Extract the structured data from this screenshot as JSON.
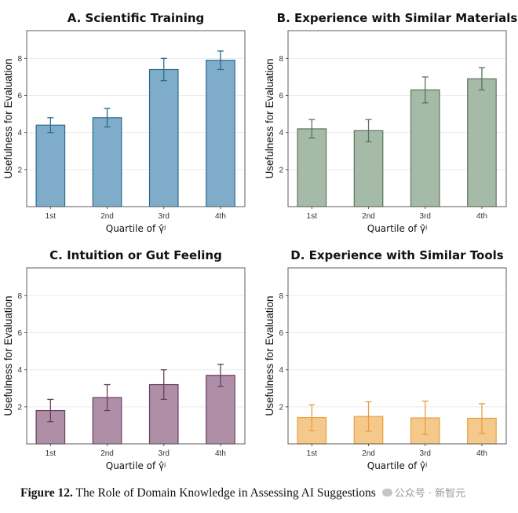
{
  "figure": {
    "caption_label": "Figure 12.",
    "caption_text": " The Role of Domain Knowledge in Assessing AI Suggestions",
    "watermark": "公众号 · 新智元",
    "watermark_icon": "wechat-icon"
  },
  "chart_data": [
    {
      "type": "bar",
      "title": "A. Scientific Training",
      "xlabel": "Quartile of γ̂ʲ",
      "ylabel": "Usefulness for Evaluation",
      "categories": [
        "1st",
        "2nd",
        "3rd",
        "4th"
      ],
      "values": [
        4.4,
        4.8,
        7.4,
        7.9
      ],
      "error_low": [
        4.0,
        4.3,
        6.8,
        7.4
      ],
      "error_high": [
        4.8,
        5.3,
        8.0,
        8.4
      ],
      "yticks": [
        2,
        4,
        6,
        8
      ],
      "ylim": [
        0,
        9.5
      ],
      "grid": true,
      "fill_color": "#7fadc9",
      "edge_color": "#2b6a8c",
      "error_color": "#2b6a8c"
    },
    {
      "type": "bar",
      "title": "B. Experience with Similar Materials",
      "xlabel": "Quartile of γ̂ʲ",
      "ylabel": "Usefulness for Evaluation",
      "categories": [
        "1st",
        "2nd",
        "3rd",
        "4th"
      ],
      "values": [
        4.2,
        4.1,
        6.3,
        6.9
      ],
      "error_low": [
        3.7,
        3.5,
        5.6,
        6.3
      ],
      "error_high": [
        4.7,
        4.7,
        7.0,
        7.5
      ],
      "yticks": [
        2,
        4,
        6,
        8
      ],
      "ylim": [
        0,
        9.5
      ],
      "grid": true,
      "fill_color": "#a6bba7",
      "edge_color": "#5a735c",
      "error_color": "#5a735c"
    },
    {
      "type": "bar",
      "title": "C. Intuition or Gut Feeling",
      "xlabel": "Quartile of γ̂ʲ",
      "ylabel": "Usefulness for Evaluation",
      "categories": [
        "1st",
        "2nd",
        "3rd",
        "4th"
      ],
      "values": [
        1.8,
        2.5,
        3.2,
        3.7
      ],
      "error_low": [
        1.2,
        1.8,
        2.4,
        3.1
      ],
      "error_high": [
        2.4,
        3.2,
        4.0,
        4.3
      ],
      "yticks": [
        2,
        4,
        6,
        8
      ],
      "ylim": [
        0,
        9.5
      ],
      "grid": true,
      "fill_color": "#ae8fa7",
      "edge_color": "#6a3d5d",
      "error_color": "#6a3d5d"
    },
    {
      "type": "bar",
      "title": "D. Experience with Similar Tools",
      "xlabel": "Quartile of γ̂ʲ",
      "ylabel": "Usefulness for Evaluation",
      "categories": [
        "1st",
        "2nd",
        "3rd",
        "4th"
      ],
      "values": [
        1.42,
        1.48,
        1.4,
        1.38
      ],
      "error_low": [
        0.71,
        0.68,
        0.51,
        0.57
      ],
      "error_high": [
        2.11,
        2.27,
        2.31,
        2.17
      ],
      "yticks": [
        2,
        4,
        6,
        8
      ],
      "ylim": [
        0,
        9.5
      ],
      "grid": true,
      "fill_color": "#f5c88c",
      "edge_color": "#e6a040",
      "error_color": "#e6a040"
    }
  ]
}
